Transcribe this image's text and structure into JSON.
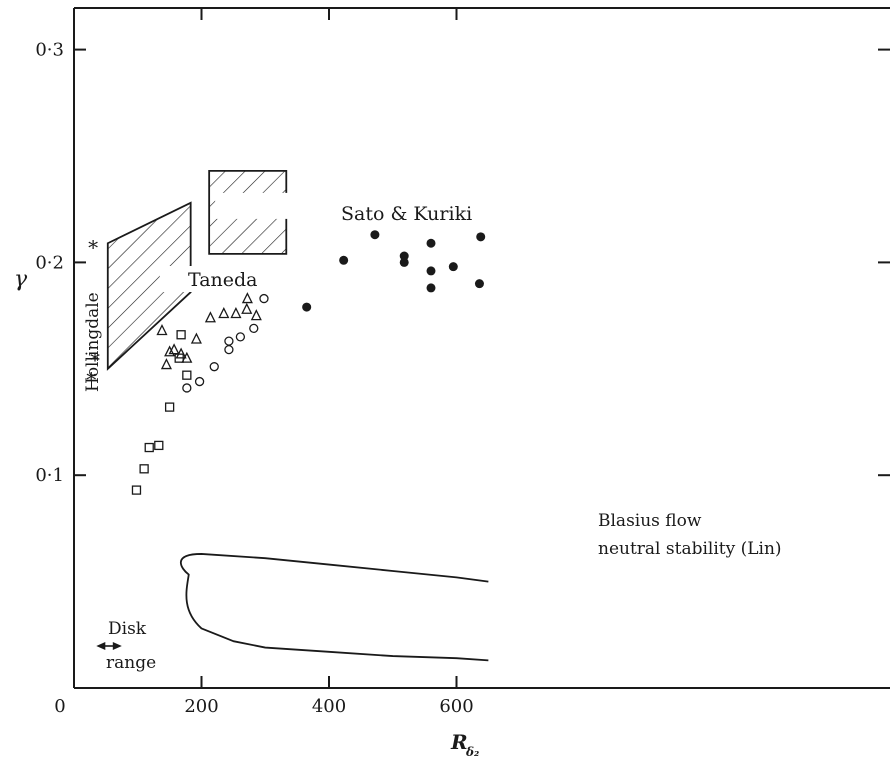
{
  "chart_data": {
    "type": "scatter",
    "xlabel": "R",
    "xlabel_sub": "δ₂",
    "ylabel": "γ",
    "xlim": [
      0,
      650
    ],
    "ylim": [
      0,
      0.32
    ],
    "x_ticks": [
      0,
      200,
      400,
      600
    ],
    "x_tick_labels": [
      "0",
      "200",
      "400",
      "600"
    ],
    "y_ticks": [
      0.1,
      0.2,
      0.3
    ],
    "y_tick_labels": [
      "0·1",
      "0·2",
      "0·3"
    ],
    "grid": false,
    "series": [
      {
        "marker": "square",
        "points": [
          [
            98,
            0.093
          ],
          [
            110,
            0.103
          ],
          [
            118,
            0.113
          ],
          [
            133,
            0.114
          ],
          [
            150,
            0.132
          ],
          [
            165,
            0.155
          ],
          [
            168,
            0.166
          ],
          [
            177,
            0.147
          ]
        ]
      },
      {
        "marker": "triangle",
        "points": [
          [
            138,
            0.168
          ],
          [
            145,
            0.152
          ],
          [
            150,
            0.158
          ],
          [
            157,
            0.159
          ],
          [
            168,
            0.157
          ],
          [
            177,
            0.155
          ],
          [
            192,
            0.164
          ],
          [
            214,
            0.174
          ],
          [
            235,
            0.176
          ],
          [
            254,
            0.176
          ],
          [
            271,
            0.178
          ],
          [
            272,
            0.183
          ],
          [
            286,
            0.175
          ]
        ]
      },
      {
        "marker": "circle-open",
        "points": [
          [
            177,
            0.141
          ],
          [
            197,
            0.144
          ],
          [
            220,
            0.151
          ],
          [
            243,
            0.159
          ],
          [
            243,
            0.163
          ],
          [
            261,
            0.165
          ],
          [
            282,
            0.169
          ],
          [
            298,
            0.183
          ]
        ]
      },
      {
        "marker": "circle-filled",
        "points": [
          [
            365,
            0.179
          ],
          [
            423,
            0.201
          ],
          [
            472,
            0.213
          ],
          [
            518,
            0.2
          ],
          [
            518,
            0.203
          ],
          [
            560,
            0.188
          ],
          [
            560,
            0.196
          ],
          [
            560,
            0.209
          ],
          [
            595,
            0.198
          ],
          [
            636,
            0.19
          ],
          [
            638,
            0.212
          ]
        ]
      },
      {
        "marker": "star",
        "points": [
          [
            30,
            0.208
          ],
          [
            33,
            0.155
          ],
          [
            27,
            0.146
          ]
        ]
      }
    ],
    "regions": [
      {
        "label": "Taneda",
        "vertices": [
          [
            53,
            0.209
          ],
          [
            183,
            0.228
          ],
          [
            183,
            0.186
          ],
          [
            53,
            0.15
          ]
        ]
      },
      {
        "label": "Sato & Kuriki",
        "vertices": [
          [
            212,
            0.243
          ],
          [
            333,
            0.243
          ],
          [
            333,
            0.204
          ],
          [
            212,
            0.204
          ]
        ]
      }
    ],
    "neutral_curve": {
      "label_line1": "Blasius flow",
      "label_line2": "neutral stability (Lin)",
      "upper": [
        [
          180,
          0.058
        ],
        [
          200,
          0.063
        ],
        [
          300,
          0.061
        ],
        [
          400,
          0.058
        ],
        [
          500,
          0.055
        ],
        [
          600,
          0.052
        ],
        [
          650,
          0.05
        ]
      ],
      "lower": [
        [
          180,
          0.034
        ],
        [
          200,
          0.028
        ],
        [
          250,
          0.022
        ],
        [
          300,
          0.019
        ],
        [
          400,
          0.017
        ],
        [
          500,
          0.015
        ],
        [
          600,
          0.014
        ],
        [
          650,
          0.013
        ]
      ]
    },
    "annotations": {
      "hollingdale": "Hollingdale",
      "disk_line1": "Disk",
      "disk_line2": "range",
      "disk_range_x": [
        35,
        75
      ]
    }
  }
}
